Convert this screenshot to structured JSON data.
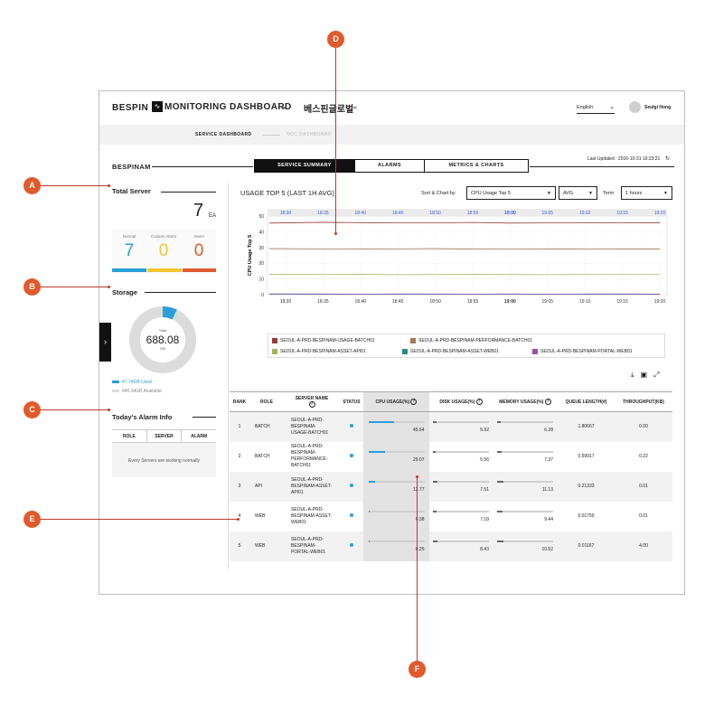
{
  "header": {
    "brand": "BESPIN",
    "monitor_title": "MONITORING DASHBOARD",
    "company": "베스핀글로벌",
    "language": "English",
    "user": "Seulgi Hong"
  },
  "subnav": {
    "active": "SERVICE DASHBOARD",
    "inactive": "NOC DASHBOARD"
  },
  "page": {
    "name": "BESPINAM",
    "tabs": [
      "SERVICE SUMMARY",
      "ALARMS",
      "METRICS & CHARTS"
    ],
    "active_tab": 0,
    "last_updated": "Last Updated : 2016-10-31 19:23:21"
  },
  "total_server": {
    "title": "Total Server",
    "count": "7",
    "unit": "EA",
    "stats": [
      {
        "label": "Normal",
        "value": "7",
        "color": "#2a9fd8"
      },
      {
        "label": "Custom Alarm",
        "value": "0",
        "color": "#f2c531"
      },
      {
        "label": "Alarm",
        "value": "0",
        "color": "#e05a2b"
      }
    ]
  },
  "storage": {
    "title": "Storage",
    "total_label": "Total",
    "total": "688.08",
    "unit": "GB",
    "used_fraction": 0.07,
    "used_label": "47.74GB Used",
    "available_label": "640.34GB Available"
  },
  "alarm_info": {
    "title": "Today's Alarm Info",
    "columns": [
      "ROLE",
      "SERVER",
      "ALARM"
    ],
    "message": "Every Servers are working normally"
  },
  "usage": {
    "title": "USAGE TOP 5 (LAST 1H AVG)",
    "sort_label": "Sort & Chart by",
    "sort_value": "CPU Usage Top 5",
    "agg_value": "AVG",
    "term_label": "Term",
    "term_value": "1 hours"
  },
  "chart_data": {
    "type": "line",
    "ylabel": "CPU Usage Top 5",
    "ylim": [
      0,
      50
    ],
    "yticks": [
      0,
      10,
      20,
      30,
      40,
      50
    ],
    "x": [
      "18:30",
      "18:35",
      "18:40",
      "18:45",
      "18:50",
      "18:55",
      "19:00",
      "19:05",
      "19:10",
      "19:15",
      "19:20"
    ],
    "series": [
      {
        "name": "SEOUL-A-PRD-BESPINAM-USAGE-BATCH01",
        "color": "#9b3b3b",
        "values": [
          45.5,
          46,
          45.8,
          45.6,
          45.7,
          45.9,
          45.5,
          45.6,
          45.8,
          45.7,
          45.64
        ]
      },
      {
        "name": "SEOUL-A-PRD-BESPINAM-PERFORMANCE-BATCH01",
        "color": "#a0785a",
        "values": [
          29.2,
          29.1,
          29.0,
          29.1,
          29.2,
          29.0,
          29.1,
          29.0,
          29.1,
          29.0,
          29.07
        ]
      },
      {
        "name": "SEOUL-A-PRD-BESPINAM-ASSET-API01",
        "color": "#a3b35a",
        "values": [
          13.0,
          12.8,
          12.9,
          12.7,
          12.8,
          12.9,
          12.8,
          12.7,
          12.8,
          12.8,
          12.77
        ]
      },
      {
        "name": "SEOUL-A-PRD-BESPINAM-ASSET-WEB01",
        "color": "#2a8a8a",
        "values": [
          0.5,
          0.4,
          0.3,
          0.4,
          0.4,
          0.3,
          0.4,
          0.3,
          0.4,
          0.4,
          0.38
        ]
      },
      {
        "name": "SEOUL-A-PRD-BESPINAM-PORTAL-WEB01",
        "color": "#9b4fa8",
        "values": [
          0.3,
          0.2,
          0.3,
          0.2,
          0.3,
          0.2,
          0.3,
          0.2,
          0.3,
          0.2,
          0.25
        ]
      }
    ]
  },
  "table": {
    "columns": [
      "RANK",
      "ROLE",
      "SERVER NAME",
      "STATUS",
      "CPU USAGE(%)",
      "DISK USAGE(%)",
      "MEMORY USAGE(%)",
      "QUEUE LENGTH(#)",
      "THROUGHPUT(KB)"
    ],
    "rows": [
      {
        "rank": "1",
        "role": "BATCH",
        "name": [
          "SEOUL-A-PRD-",
          "BESPINAM-",
          "USAGE-BATCH01"
        ],
        "cpu": "45.64",
        "disk": "5.92",
        "mem": "6.28",
        "queue": "1.80667",
        "tp": "0.00"
      },
      {
        "rank": "2",
        "role": "BATCH",
        "name": [
          "SEOUL-A-PRD-",
          "BESPINAM-",
          "PERFORMANCE-",
          "BATCH01"
        ],
        "cpu": "29.07",
        "disk": "5.56",
        "mem": "7.37",
        "queue": "0.59917",
        "tp": "0.22"
      },
      {
        "rank": "3",
        "role": "API",
        "name": [
          "SEOUL-A-PRD-",
          "BESPINAM-ASSET-",
          "API01"
        ],
        "cpu": "12.77",
        "disk": "7.51",
        "mem": "11.13",
        "queue": "0.21333",
        "tp": "0.01"
      },
      {
        "rank": "4",
        "role": "WEB",
        "name": [
          "SEOUL-A-PRD-",
          "BESPINAM-ASSET-",
          "WEB01"
        ],
        "cpu": "0.38",
        "disk": "7.18",
        "mem": "9.44",
        "queue": "0.01750",
        "tp": "0.01"
      },
      {
        "rank": "5",
        "role": "WEB",
        "name": [
          "SEOUL-A-PRD-",
          "BESPINAM-",
          "PORTAL-WEB01"
        ],
        "cpu": "0.25",
        "disk": "8.43",
        "mem": "10.52",
        "queue": "0.01167",
        "tp": "4.00"
      }
    ]
  },
  "callouts": [
    "A",
    "B",
    "C",
    "D",
    "E",
    "F"
  ],
  "colors": {
    "accent": "#2a9fd8",
    "callout": "#e05a2b"
  }
}
